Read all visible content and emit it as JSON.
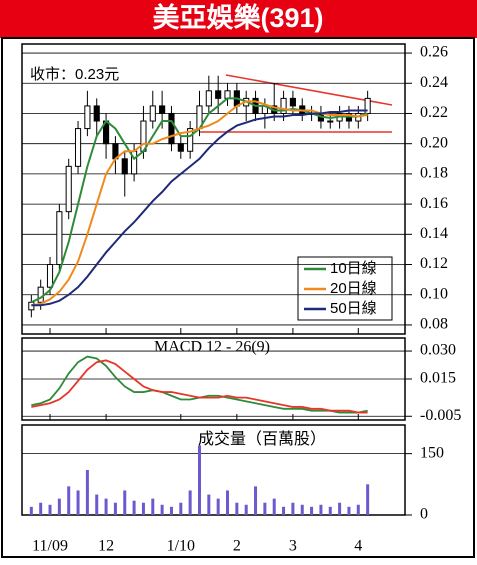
{
  "chart_data": [
    {
      "type": "candlestick",
      "title": "美亞娛樂(391)",
      "annotation": "收市：0.23元",
      "categories": [
        null,
        null,
        "11/09",
        null,
        null,
        null,
        null,
        null,
        "12",
        null,
        null,
        null,
        null,
        null,
        null,
        null,
        "1/10",
        null,
        null,
        null,
        null,
        null,
        "2",
        null,
        null,
        null,
        null,
        null,
        "3",
        null,
        null,
        null,
        null,
        null,
        null,
        "4",
        null
      ],
      "open": [
        0.09,
        0.095,
        0.105,
        0.12,
        0.155,
        0.185,
        0.21,
        0.225,
        0.215,
        0.2,
        0.19,
        0.18,
        0.195,
        0.215,
        0.225,
        0.22,
        0.2,
        0.195,
        0.21,
        0.225,
        0.235,
        0.23,
        0.235,
        0.225,
        0.23,
        0.22,
        0.225,
        0.22,
        0.23,
        0.225,
        0.22,
        0.22,
        0.215,
        0.215,
        0.22,
        0.215,
        0.22
      ],
      "high": [
        0.1,
        0.11,
        0.125,
        0.16,
        0.19,
        0.215,
        0.235,
        0.23,
        0.22,
        0.205,
        0.195,
        0.2,
        0.225,
        0.235,
        0.235,
        0.225,
        0.205,
        0.215,
        0.235,
        0.245,
        0.245,
        0.24,
        0.24,
        0.235,
        0.235,
        0.23,
        0.24,
        0.235,
        0.235,
        0.23,
        0.225,
        0.225,
        0.22,
        0.225,
        0.225,
        0.225,
        0.235
      ],
      "low": [
        0.085,
        0.09,
        0.1,
        0.115,
        0.15,
        0.18,
        0.205,
        0.205,
        0.19,
        0.18,
        0.165,
        0.175,
        0.19,
        0.21,
        0.21,
        0.195,
        0.19,
        0.19,
        0.205,
        0.22,
        0.22,
        0.225,
        0.22,
        0.215,
        0.215,
        0.21,
        0.215,
        0.215,
        0.22,
        0.215,
        0.215,
        0.21,
        0.21,
        0.21,
        0.21,
        0.21,
        0.215
      ],
      "close": [
        0.095,
        0.105,
        0.12,
        0.155,
        0.185,
        0.21,
        0.225,
        0.215,
        0.2,
        0.19,
        0.18,
        0.195,
        0.215,
        0.225,
        0.22,
        0.2,
        0.195,
        0.21,
        0.225,
        0.235,
        0.23,
        0.235,
        0.225,
        0.23,
        0.22,
        0.225,
        0.22,
        0.23,
        0.225,
        0.22,
        0.22,
        0.215,
        0.215,
        0.22,
        0.215,
        0.22,
        0.23
      ],
      "series": [
        {
          "name": "10日線",
          "color": "#2e8b3a",
          "values": [
            0.095,
            0.098,
            0.103,
            0.115,
            0.135,
            0.16,
            0.185,
            0.205,
            0.215,
            0.21,
            0.2,
            0.19,
            0.195,
            0.205,
            0.215,
            0.215,
            0.205,
            0.205,
            0.21,
            0.22,
            0.225,
            0.23,
            0.23,
            0.228,
            0.225,
            0.225,
            0.222,
            0.222,
            0.223,
            0.222,
            0.22,
            0.218,
            0.217,
            0.218,
            0.218,
            0.218,
            0.22
          ]
        },
        {
          "name": "20日線",
          "color": "#f08a1c",
          "values": [
            0.093,
            0.094,
            0.097,
            0.102,
            0.11,
            0.122,
            0.14,
            0.16,
            0.18,
            0.19,
            0.195,
            0.195,
            0.2,
            0.2,
            0.203,
            0.205,
            0.207,
            0.208,
            0.21,
            0.212,
            0.215,
            0.22,
            0.225,
            0.228,
            0.228,
            0.226,
            0.224,
            0.223,
            0.222,
            0.222,
            0.222,
            0.22,
            0.219,
            0.219,
            0.219,
            0.218,
            0.219
          ]
        },
        {
          "name": "50日線",
          "color": "#1f2a7a",
          "values": [
            0.093,
            0.093,
            0.094,
            0.096,
            0.1,
            0.105,
            0.112,
            0.12,
            0.128,
            0.135,
            0.142,
            0.148,
            0.155,
            0.162,
            0.168,
            0.175,
            0.18,
            0.185,
            0.19,
            0.197,
            0.203,
            0.208,
            0.212,
            0.214,
            0.216,
            0.217,
            0.218,
            0.218,
            0.219,
            0.219,
            0.22,
            0.22,
            0.221,
            0.221,
            0.222,
            0.222,
            0.222
          ]
        }
      ],
      "ylim": [
        0.074,
        0.266
      ],
      "yticks": [
        0.26,
        0.24,
        0.22,
        {
          "value": 0.2,
          "label": "0.20"
        },
        0.18,
        0.16,
        0.14,
        0.12,
        {
          "value": 0.1,
          "label": "0.10"
        },
        0.08
      ],
      "grid": true
    },
    {
      "type": "line",
      "title": "MACD 12 - 26(9)",
      "series": [
        {
          "color": "#2e8b3a",
          "values": [
            0.001,
            0.002,
            0.004,
            0.01,
            0.018,
            0.024,
            0.027,
            0.026,
            0.022,
            0.016,
            0.011,
            0.008,
            0.008,
            0.009,
            0.008,
            0.006,
            0.004,
            0.004,
            0.005,
            0.006,
            0.006,
            0.005,
            0.004,
            0.003,
            0.002,
            0.001,
            0,
            -0.001,
            -0.001,
            -0.001,
            -0.002,
            -0.002,
            -0.002,
            -0.003,
            -0.003,
            -0.003,
            -0.002
          ]
        },
        {
          "color": "#e8352a",
          "values": [
            0,
            0.001,
            0.002,
            0.004,
            0.008,
            0.014,
            0.02,
            0.024,
            0.025,
            0.023,
            0.019,
            0.015,
            0.011,
            0.009,
            0.008,
            0.008,
            0.007,
            0.006,
            0.005,
            0.005,
            0.005,
            0.006,
            0.005,
            0.005,
            0.004,
            0.003,
            0.002,
            0.001,
            0,
            0,
            -0.001,
            -0.001,
            -0.002,
            -0.002,
            -0.002,
            -0.003,
            -0.003
          ]
        }
      ],
      "ylim": [
        -0.007,
        0.037
      ],
      "yticks": [
        {
          "value": 0.03,
          "label": "0.030"
        },
        0.015,
        -0.005
      ],
      "grid": true
    },
    {
      "type": "bar",
      "title": "成交量（百萬股）",
      "color": "#6a5acd",
      "values": [
        20,
        30,
        25,
        40,
        70,
        60,
        110,
        50,
        40,
        30,
        60,
        35,
        30,
        40,
        25,
        20,
        30,
        60,
        170,
        50,
        40,
        60,
        30,
        25,
        70,
        30,
        40,
        20,
        30,
        25,
        20,
        25,
        20,
        30,
        20,
        25,
        75
      ],
      "ylim": [
        0,
        220
      ],
      "yticks": [
        150,
        0
      ],
      "grid": true
    }
  ]
}
